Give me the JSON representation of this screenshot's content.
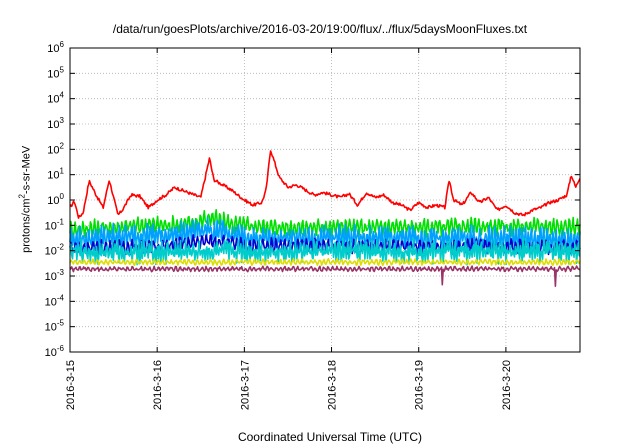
{
  "chart_data": {
    "type": "line",
    "title": "/data/run/goesPlots/archive/2016-03-20/19:00/flux/../flux/5daysMoonFluxes.txt",
    "xlabel": "Coordinated Universal Time (UTC)",
    "ylabel_prefix": "protons/cm",
    "ylabel_sup": "2",
    "ylabel_suffix": "-s-sr-MeV",
    "y_scale": "log",
    "ylim": [
      1e-06,
      1000000.0
    ],
    "y_tick_bases": [
      "10",
      "10",
      "10",
      "10",
      "10",
      "10",
      "10",
      "10",
      "10",
      "10",
      "10",
      "10",
      "10"
    ],
    "y_tick_exponents": [
      "-6",
      "-5",
      "-4",
      "-3",
      "-2",
      "-1",
      "0",
      "1",
      "2",
      "3",
      "4",
      "5",
      "6"
    ],
    "y_tick_values": [
      -6,
      -5,
      -4,
      -3,
      -2,
      -1,
      0,
      1,
      2,
      3,
      4,
      5,
      6
    ],
    "xlim": [
      0,
      5.85
    ],
    "x_tick_labels": [
      "2016-3-15",
      "2016-3-16",
      "2016-3-17",
      "2016-3-18",
      "2016-3-19",
      "2016-3-20"
    ],
    "x_tick_values": [
      0,
      1,
      2,
      3,
      4,
      5
    ],
    "grid": true,
    "legend": "none",
    "series": [
      {
        "color": "#ff0000",
        "log_base": -0.15,
        "amp": 0.25,
        "period": 0.09,
        "noise": 0.3,
        "x_points": [
          0,
          0.05,
          0.1,
          0.15,
          0.22,
          0.3,
          0.38,
          0.45,
          0.55,
          0.6,
          0.7,
          0.8,
          0.9,
          1.0,
          1.1,
          1.2,
          1.35,
          1.5,
          1.6,
          1.65,
          1.75,
          1.85,
          2.0,
          2.1,
          2.2,
          2.25,
          2.3,
          2.4,
          2.5,
          2.6,
          2.7,
          2.8,
          2.9,
          3.0,
          3.1,
          3.2,
          3.3,
          3.4,
          3.5,
          3.6,
          3.7,
          3.8,
          3.9,
          4.0,
          4.1,
          4.2,
          4.3,
          4.35,
          4.4,
          4.5,
          4.6,
          4.7,
          4.8,
          4.9,
          5.0,
          5.1,
          5.2,
          5.3,
          5.4,
          5.5,
          5.6,
          5.7,
          5.75,
          5.8,
          5.85
        ],
        "y_log": [
          -0.3,
          -0.05,
          -0.7,
          -0.5,
          0.75,
          0.2,
          -0.3,
          0.8,
          -0.6,
          -0.4,
          0.2,
          0.15,
          -0.3,
          0.0,
          0.2,
          0.5,
          0.3,
          0.1,
          1.65,
          0.8,
          0.6,
          0.4,
          0.0,
          -0.2,
          -0.1,
          0.4,
          2.0,
          0.9,
          0.5,
          0.6,
          0.4,
          0.2,
          0.3,
          0.2,
          0.1,
          0.25,
          -0.2,
          0.3,
          0.1,
          0.2,
          -0.1,
          -0.2,
          -0.4,
          -0.1,
          -0.3,
          -0.2,
          -0.3,
          0.8,
          0.0,
          -0.2,
          0.3,
          -0.1,
          0.1,
          -0.4,
          -0.2,
          -0.5,
          -0.6,
          -0.4,
          -0.3,
          -0.1,
          0.0,
          0.2,
          1.0,
          0.5,
          0.9
        ]
      },
      {
        "color": "#00e000",
        "log_base": -1.1,
        "amp": 0.25,
        "period": 0.045,
        "noise": 0.15,
        "x_points": [
          0,
          0.9,
          1.2,
          1.4,
          1.6,
          1.9,
          2.4,
          5.85
        ],
        "y_log": [
          -1.2,
          -1.0,
          -1.0,
          -0.95,
          -0.7,
          -1.0,
          -1.1,
          -1.05
        ]
      },
      {
        "color": "#00a0ff",
        "log_base": -1.55,
        "amp": 0.35,
        "period": 0.035,
        "noise": 0.25,
        "x_points": [
          0,
          0.8,
          1.3,
          1.5,
          1.7,
          2.0,
          5.85
        ],
        "y_log": [
          -1.6,
          -1.4,
          -1.4,
          -1.1,
          -1.3,
          -1.5,
          -1.55
        ]
      },
      {
        "color": "#0000cc",
        "log_base": -1.85,
        "amp": 0.2,
        "period": 0.05,
        "noise": 0.12,
        "x_points": [
          0,
          1.0,
          1.6,
          2.0,
          5.85
        ],
        "y_log": [
          -1.9,
          -1.85,
          -1.6,
          -1.8,
          -1.85
        ]
      },
      {
        "color": "#00cccc",
        "log_base": -2.0,
        "amp": 0.3,
        "period": 0.03,
        "noise": 0.25,
        "x_points": [
          0,
          5.85
        ],
        "y_log": [
          -2.05,
          -2.0
        ]
      },
      {
        "color": "#dddd00",
        "log_base": -2.45,
        "amp": 0.08,
        "period": 0.05,
        "noise": 0.05,
        "x_points": [
          0,
          5.85
        ],
        "y_log": [
          -2.45,
          -2.45
        ]
      },
      {
        "color": "#993366",
        "log_base": -2.72,
        "amp": 0.06,
        "period": 0.05,
        "noise": 0.05,
        "x_points": [
          0,
          5.85
        ],
        "y_log": [
          -2.72,
          -2.72
        ]
      }
    ]
  }
}
